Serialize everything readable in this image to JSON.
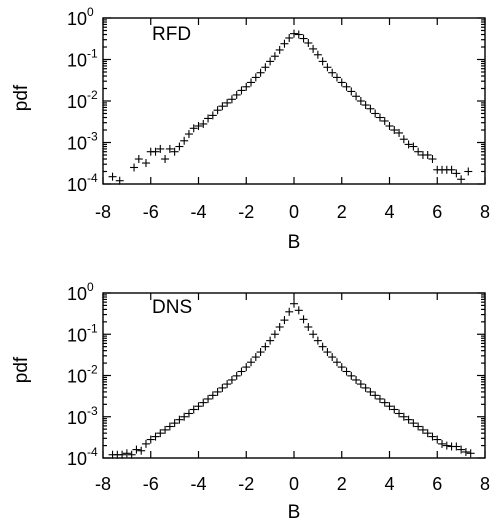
{
  "chart_data": [
    {
      "type": "scatter",
      "panel_label": "RFD",
      "xlabel": "B",
      "ylabel": "pdf",
      "xlim": [
        -8,
        8
      ],
      "ylim": [
        0.0001,
        1
      ],
      "yscale": "log",
      "marker": "+",
      "x_ticks": [
        "-8",
        "-6",
        "-4",
        "-2",
        "0",
        "2",
        "4",
        "6",
        "8"
      ],
      "y_ticks": [
        {
          "base": "10",
          "exp": "-4"
        },
        {
          "base": "10",
          "exp": "-3"
        },
        {
          "base": "10",
          "exp": "-2"
        },
        {
          "base": "10",
          "exp": "-1"
        },
        {
          "base": "10",
          "exp": "0"
        }
      ],
      "series": [
        {
          "x": [
            -7.6,
            -7.3,
            -6.7,
            -6.5,
            -6.2,
            -6.0,
            -5.8,
            -5.6,
            -5.4,
            -5.2,
            -5.0,
            -4.8,
            -4.6,
            -4.4,
            -4.2,
            -4.0,
            -3.8,
            -3.6,
            -3.4,
            -3.2,
            -3.0,
            -2.8,
            -2.6,
            -2.4,
            -2.2,
            -2.0,
            -1.8,
            -1.6,
            -1.4,
            -1.2,
            -1.0,
            -0.8,
            -0.6,
            -0.4,
            -0.2,
            0.0,
            0.2,
            0.4,
            0.6,
            0.8,
            1.0,
            1.2,
            1.4,
            1.6,
            1.8,
            2.0,
            2.2,
            2.4,
            2.6,
            2.8,
            3.0,
            3.2,
            3.4,
            3.6,
            3.8,
            4.0,
            4.2,
            4.4,
            4.6,
            4.8,
            5.0,
            5.2,
            5.4,
            5.6,
            5.8,
            6.0,
            6.2,
            6.4,
            6.6,
            6.8,
            7.0,
            7.3
          ],
          "y": [
            0.00015,
            0.00012,
            0.00025,
            0.0004,
            0.00032,
            0.0006,
            0.0006,
            0.0007,
            0.0004,
            0.0007,
            0.0006,
            0.0008,
            0.0011,
            0.0016,
            0.0022,
            0.0025,
            0.0028,
            0.0038,
            0.0045,
            0.006,
            0.0075,
            0.009,
            0.011,
            0.014,
            0.018,
            0.022,
            0.028,
            0.037,
            0.048,
            0.065,
            0.09,
            0.12,
            0.17,
            0.24,
            0.33,
            0.42,
            0.4,
            0.32,
            0.25,
            0.18,
            0.13,
            0.09,
            0.065,
            0.048,
            0.037,
            0.028,
            0.022,
            0.017,
            0.013,
            0.01,
            0.008,
            0.0065,
            0.005,
            0.004,
            0.0033,
            0.0025,
            0.002,
            0.0017,
            0.0012,
            0.0009,
            0.0008,
            0.0006,
            0.0005,
            0.0005,
            0.0004,
            0.00022,
            0.00022,
            0.00022,
            0.00022,
            0.00018,
            0.00013,
            0.0002
          ]
        }
      ]
    },
    {
      "type": "scatter",
      "panel_label": "DNS",
      "xlabel": "B",
      "ylabel": "pdf",
      "xlim": [
        -8,
        8
      ],
      "ylim": [
        0.0001,
        1
      ],
      "yscale": "log",
      "marker": "+",
      "x_ticks": [
        "-8",
        "-6",
        "-4",
        "-2",
        "0",
        "2",
        "4",
        "6",
        "8"
      ],
      "y_ticks": [
        {
          "base": "10",
          "exp": "-4"
        },
        {
          "base": "10",
          "exp": "-3"
        },
        {
          "base": "10",
          "exp": "-2"
        },
        {
          "base": "10",
          "exp": "-1"
        },
        {
          "base": "10",
          "exp": "0"
        }
      ],
      "series": [
        {
          "x": [
            -7.6,
            -7.4,
            -7.2,
            -7.0,
            -6.8,
            -6.6,
            -6.4,
            -6.2,
            -6.0,
            -5.8,
            -5.6,
            -5.4,
            -5.2,
            -5.0,
            -4.8,
            -4.6,
            -4.4,
            -4.2,
            -4.0,
            -3.8,
            -3.6,
            -3.4,
            -3.2,
            -3.0,
            -2.8,
            -2.6,
            -2.4,
            -2.2,
            -2.0,
            -1.8,
            -1.6,
            -1.4,
            -1.2,
            -1.0,
            -0.8,
            -0.6,
            -0.4,
            -0.2,
            0.0,
            0.2,
            0.4,
            0.6,
            0.8,
            1.0,
            1.2,
            1.4,
            1.6,
            1.8,
            2.0,
            2.2,
            2.4,
            2.6,
            2.8,
            3.0,
            3.2,
            3.4,
            3.6,
            3.8,
            4.0,
            4.2,
            4.4,
            4.6,
            4.8,
            5.0,
            5.2,
            5.4,
            5.6,
            5.8,
            6.0,
            6.2,
            6.4,
            6.6,
            6.8,
            7.0,
            7.2,
            7.4
          ],
          "y": [
            0.00012,
            0.00012,
            0.00012,
            0.00013,
            0.00012,
            0.00016,
            0.00015,
            0.00022,
            0.00028,
            0.00033,
            0.0004,
            0.00048,
            0.00058,
            0.0007,
            0.00085,
            0.001,
            0.0012,
            0.0015,
            0.0018,
            0.0022,
            0.0027,
            0.0033,
            0.004,
            0.005,
            0.0062,
            0.0078,
            0.0098,
            0.0125,
            0.016,
            0.021,
            0.028,
            0.037,
            0.05,
            0.07,
            0.1,
            0.15,
            0.22,
            0.35,
            0.55,
            0.38,
            0.23,
            0.15,
            0.1,
            0.07,
            0.05,
            0.037,
            0.028,
            0.021,
            0.016,
            0.0125,
            0.0098,
            0.0078,
            0.0062,
            0.005,
            0.004,
            0.0033,
            0.0027,
            0.0022,
            0.0018,
            0.0015,
            0.0012,
            0.001,
            0.00085,
            0.0007,
            0.00058,
            0.00048,
            0.0004,
            0.00033,
            0.00028,
            0.00022,
            0.0002,
            0.00019,
            0.00019,
            0.00016,
            0.00014,
            0.00013
          ]
        }
      ]
    }
  ]
}
